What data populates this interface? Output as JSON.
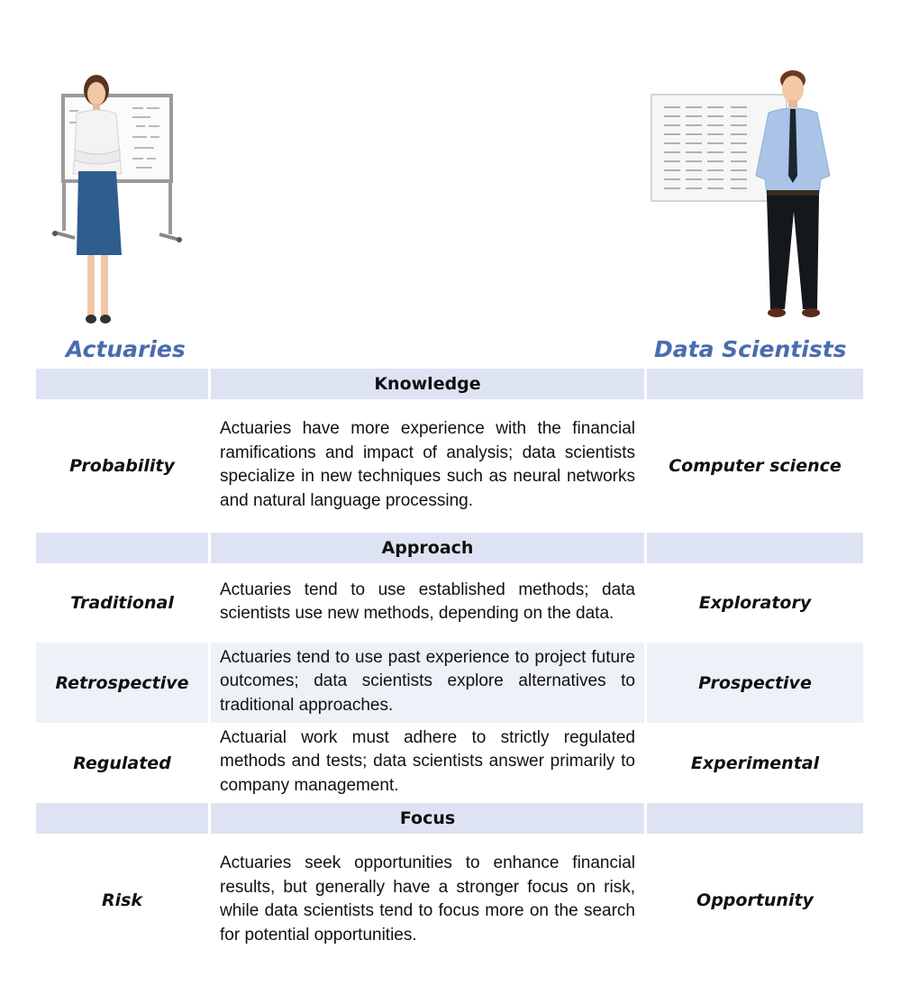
{
  "left_title": "Actuaries",
  "right_title": "Data Scientists",
  "sections": [
    {
      "header": "Knowledge",
      "rows": [
        {
          "left": "Probability",
          "text": "Actuaries have more experience with the financial ramifications and impact of analysis; data scientists specialize in new techniques such as neural networks and natural language processing.",
          "right": "Computer science"
        }
      ]
    },
    {
      "header": "Approach",
      "rows": [
        {
          "left": "Traditional",
          "text": "Actuaries tend to use established methods; data scientists use new methods, depending on the data.",
          "right": "Exploratory"
        },
        {
          "left": "Retrospective",
          "text": "Actuaries tend to use past experience to project future outcomes; data scientists explore alternatives to traditional approaches.",
          "right": "Prospective"
        },
        {
          "left": "Regulated",
          "text": "Actuarial work must adhere to strictly regulated methods and tests; data scientists answer primarily to company management.",
          "right": "Experimental"
        }
      ]
    },
    {
      "header": "Focus",
      "rows": [
        {
          "left": "Risk",
          "text": "Actuaries seek opportunities to enhance financial results, but generally have a stronger focus on risk, while data scientists tend to focus more on the search for potential opportunities.",
          "right": "Opportunity"
        }
      ]
    }
  ]
}
